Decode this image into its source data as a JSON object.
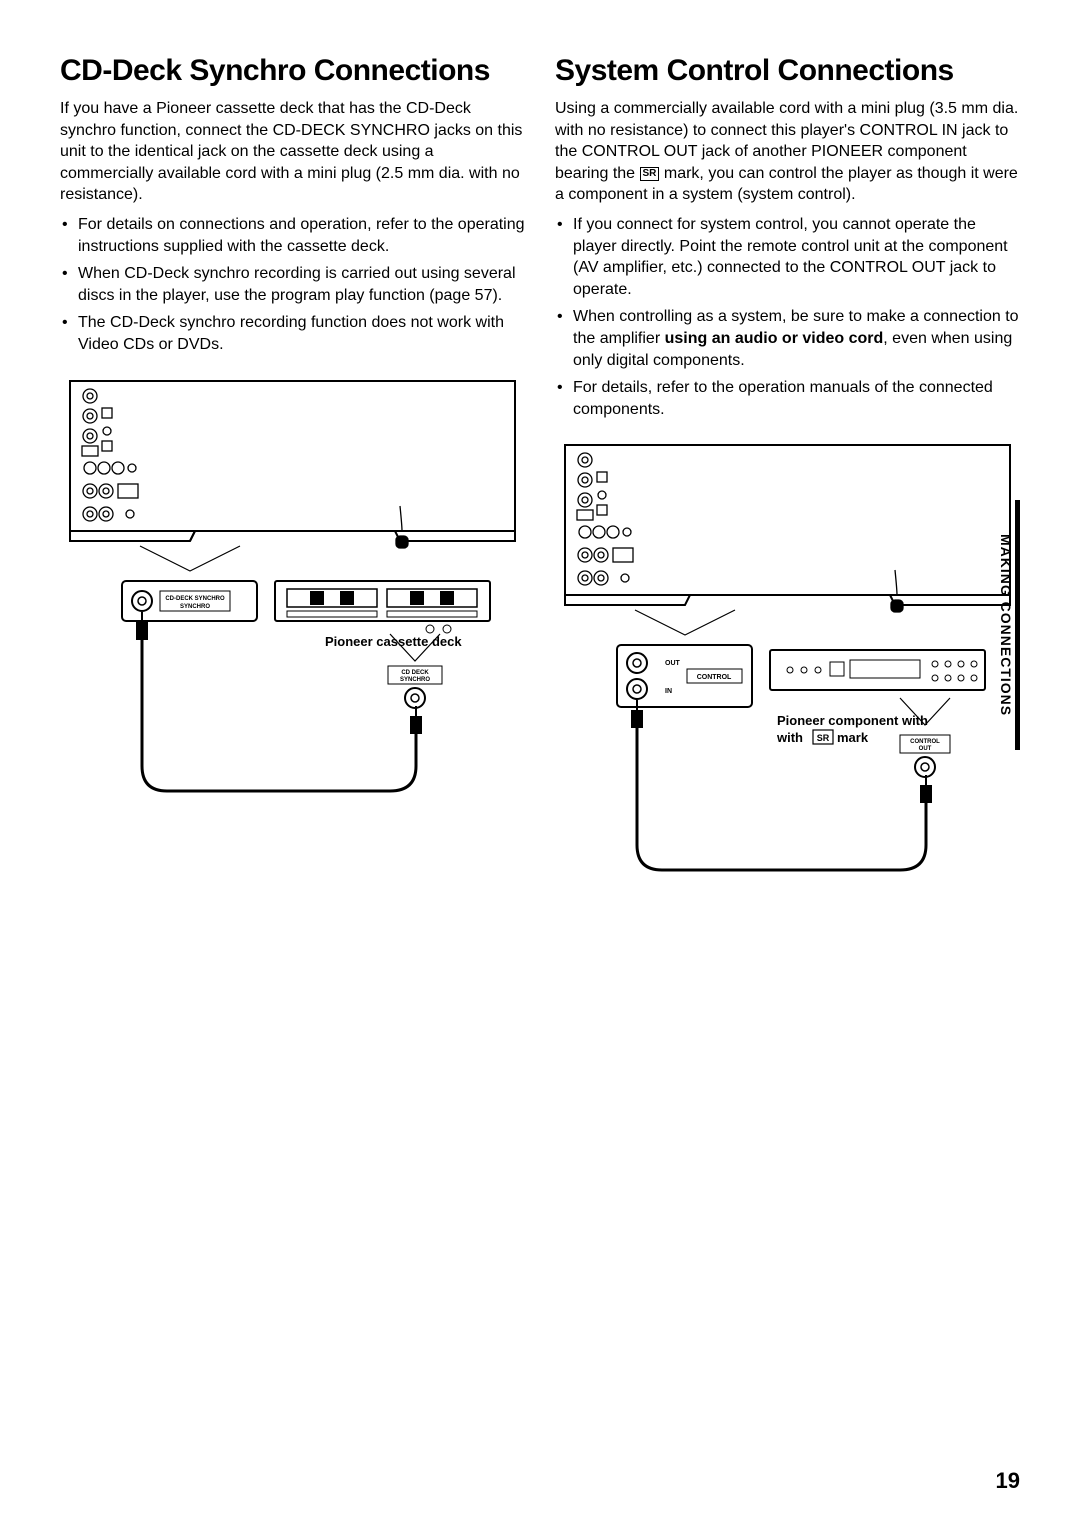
{
  "left": {
    "heading": "CD-Deck Synchro Connections",
    "intro": "If you have a Pioneer cassette deck that has the CD-Deck synchro function, connect the CD-DECK SYNCHRO jacks on this unit to the identical jack on the cassette deck using a commercially available cord with a mini plug (2.5 mm dia. with no resistance).",
    "bullets": [
      "For details on connections and operation, refer to the operating instructions supplied with the cassette deck.",
      "When CD-Deck synchro recording is carried out using several discs in the player, use the program play function (page 57).",
      "The CD-Deck synchro recording function does not work with Video CDs or DVDs."
    ],
    "diagram": {
      "caption": "Pioneer cassette deck",
      "jack_label_top": "CD-DECK SYNCHRO",
      "jack_label_bottom": "CD DECK SYNCHRO"
    }
  },
  "right": {
    "heading": "System Control Connections",
    "intro_part1": "Using a commercially available cord with a mini plug (3.5 mm dia. with no resistance) to connect this player's CONTROL IN jack to the CONTROL OUT jack of another PIONEER component bearing the ",
    "intro_part2": " mark, you can control the player as though it were a component in a system (system control).",
    "bullets_html": [
      "If you connect for system control, you cannot operate the player directly. Point the remote control unit at the component (AV amplifier, etc.) connected to the CONTROL OUT jack to operate.",
      "When controlling as a system, be sure to make a connection to the amplifier <b>using an audio or video cord</b>, even when using only digital components.",
      "For details, refer to the operation manuals of the connected components."
    ],
    "diagram": {
      "caption_part1": "Pioneer component with ",
      "caption_part2": " mark",
      "out_label": "OUT",
      "in_label": "IN",
      "control_label": "CONTROL",
      "control_out": "CONTROL OUT"
    }
  },
  "side_tab": "MAKING CONNECTIONS",
  "page_number": "19",
  "mark_text": "SR",
  "colors": {
    "stroke": "#000000",
    "bg": "#ffffff"
  }
}
